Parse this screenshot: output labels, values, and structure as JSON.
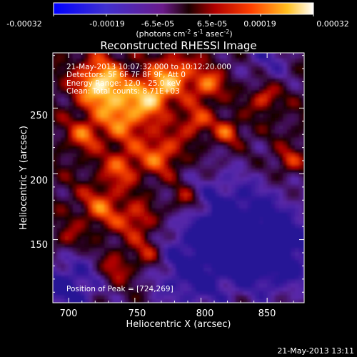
{
  "colorbar": {
    "tick_labels": [
      "-0.00032",
      "-0.00019",
      "-6.5e-05",
      "6.5e-05",
      "0.00019",
      "0.00032"
    ],
    "tick_values": [
      -0.00032,
      -0.00019,
      -6.5e-05,
      6.5e-05,
      0.00019,
      0.00032
    ],
    "range": [
      -0.00032,
      0.00032
    ],
    "units_prefix": "(photons cm",
    "units_exp1": "-2",
    "units_mid": " s",
    "units_exp2": "-1",
    "units_suffix": " asec",
    "units_exp3": "-2",
    "units_close": ")"
  },
  "chart_data": {
    "type": "heatmap",
    "title": "Reconstructed RHESSI Image",
    "xlabel": "Heliocentric X (arcsec)",
    "ylabel": "Heliocentric Y (arcsec)",
    "xlim": [
      688,
      878
    ],
    "ylim": [
      102,
      292
    ],
    "x_ticks": [
      700,
      750,
      800,
      850
    ],
    "y_ticks": [
      150,
      200,
      250
    ],
    "colormap": "rhessi-blue-purple-red-yellow-white",
    "annotations": [
      "21-May-2013 10:07:32.000 to 10:12:20.000",
      "Detectors: 5F 6F 7F 8F 9F, Att 0",
      "Energy Range: 12.0 - 25.0 keV",
      "Clean: Total counts: 8.71E+03"
    ],
    "peak_label": "Position of Peak = [724,269]",
    "peak": [
      724,
      269
    ]
  },
  "footer": {
    "timestamp": "21-May-2013 13:11"
  }
}
